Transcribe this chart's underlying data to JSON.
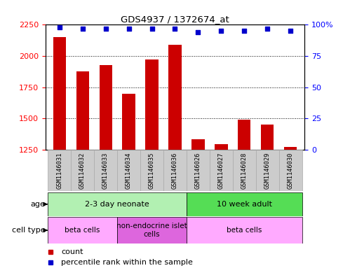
{
  "title": "GDS4937 / 1372674_at",
  "samples": [
    "GSM1146031",
    "GSM1146032",
    "GSM1146033",
    "GSM1146034",
    "GSM1146035",
    "GSM1146036",
    "GSM1146026",
    "GSM1146027",
    "GSM1146028",
    "GSM1146029",
    "GSM1146030"
  ],
  "counts": [
    2150,
    1880,
    1930,
    1700,
    1975,
    2090,
    1335,
    1295,
    1490,
    1455,
    1275
  ],
  "percentiles": [
    98,
    97,
    97,
    97,
    97,
    97,
    94,
    95,
    95,
    97,
    95
  ],
  "ylim_left": [
    1250,
    2250
  ],
  "ylim_right": [
    0,
    100
  ],
  "yticks_left": [
    1250,
    1500,
    1750,
    2000,
    2250
  ],
  "yticks_right": [
    0,
    25,
    50,
    75,
    100
  ],
  "bar_color": "#cc0000",
  "dot_color": "#0000cc",
  "bar_width": 0.55,
  "age_groups": [
    {
      "label": "2-3 day neonate",
      "start": 0,
      "end": 6,
      "color": "#b2f0b2"
    },
    {
      "label": "10 week adult",
      "start": 6,
      "end": 11,
      "color": "#55dd55"
    }
  ],
  "cell_type_groups": [
    {
      "label": "beta cells",
      "start": 0,
      "end": 3,
      "color": "#ffaaff"
    },
    {
      "label": "non-endocrine islet\ncells",
      "start": 3,
      "end": 6,
      "color": "#dd66dd"
    },
    {
      "label": "beta cells",
      "start": 6,
      "end": 11,
      "color": "#ffaaff"
    }
  ],
  "legend_count_label": "count",
  "legend_pct_label": "percentile rank within the sample",
  "age_row_label": "age",
  "cell_type_row_label": "cell type",
  "background_color": "#ffffff",
  "sample_box_color": "#cccccc",
  "sample_box_edge": "#aaaaaa"
}
